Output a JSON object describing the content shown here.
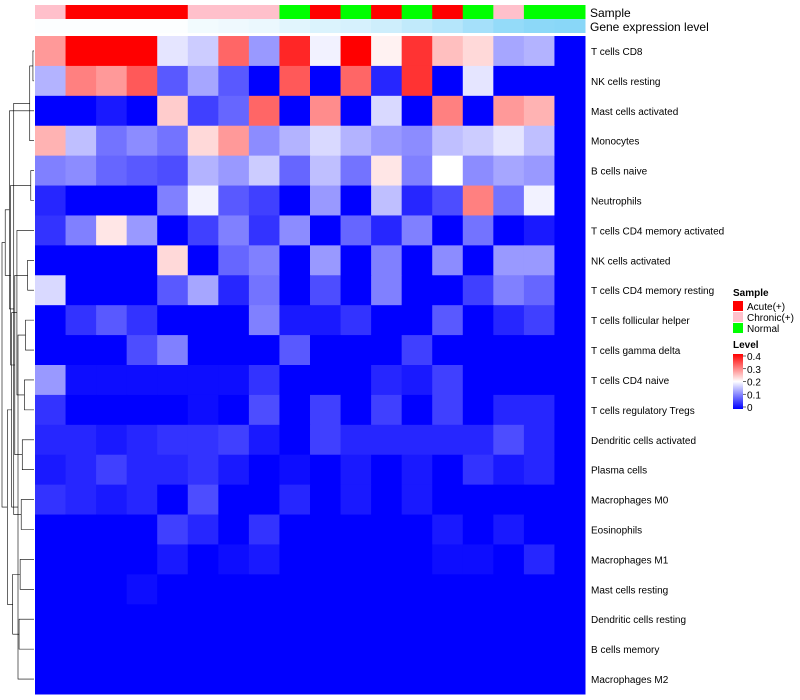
{
  "chart_data": {
    "type": "heatmap",
    "title": "",
    "annotation_labels": [
      "Sample",
      "Gene expression level"
    ],
    "sample_groups": [
      "Chronic(+)",
      "Acute(+)",
      "Acute(+)",
      "Acute(+)",
      "Acute(+)",
      "Chronic(+)",
      "Chronic(+)",
      "Chronic(+)",
      "Normal",
      "Acute(+)",
      "Normal",
      "Acute(+)",
      "Normal",
      "Acute(+)",
      "Normal",
      "Chronic(+)",
      "Normal",
      "Normal"
    ],
    "gene_expression_level": [
      0.02,
      0.02,
      0.02,
      0.02,
      0.02,
      0.08,
      0.1,
      0.12,
      0.18,
      0.22,
      0.25,
      0.3,
      0.38,
      0.45,
      0.55,
      0.65,
      0.7,
      0.72
    ],
    "rows": [
      "T cells CD8",
      "NK cells resting",
      "Mast cells activated",
      "Monocytes",
      "B cells naive",
      "Neutrophils",
      "T cells CD4 memory activated",
      "NK cells activated",
      "T cells CD4 memory resting",
      "T cells follicular helper",
      "T cells gamma delta",
      "T cells CD4 naive",
      "T cells regulatory  Tregs",
      "Dendritic cells activated",
      "Plasma cells",
      "Macrophages M0",
      "Eosinophils",
      "Macrophages M1",
      "Mast cells resting",
      "Dendritic cells resting",
      "B cells memory",
      "Macrophages M2"
    ],
    "values": [
      [
        0.28,
        0.4,
        0.4,
        0.4,
        0.18,
        0.16,
        0.32,
        0.12,
        0.37,
        0.19,
        0.4,
        0.21,
        0.36,
        0.25,
        0.23,
        0.13,
        0.14,
        0.0
      ],
      [
        0.14,
        0.3,
        0.28,
        0.33,
        0.07,
        0.13,
        0.07,
        0.0,
        0.33,
        0.0,
        0.32,
        0.03,
        0.36,
        0.0,
        0.18,
        0.0,
        0.0,
        0.0
      ],
      [
        0.0,
        0.0,
        0.02,
        0.0,
        0.24,
        0.05,
        0.08,
        0.32,
        0.0,
        0.29,
        0.0,
        0.17,
        0.0,
        0.3,
        0.0,
        0.28,
        0.26,
        0.0
      ],
      [
        0.26,
        0.15,
        0.09,
        0.11,
        0.09,
        0.23,
        0.28,
        0.11,
        0.14,
        0.17,
        0.14,
        0.12,
        0.11,
        0.15,
        0.16,
        0.18,
        0.15,
        0.0
      ],
      [
        0.1,
        0.11,
        0.08,
        0.07,
        0.06,
        0.14,
        0.12,
        0.16,
        0.08,
        0.15,
        0.09,
        0.22,
        0.1,
        0.2,
        0.11,
        0.13,
        0.12,
        0.0
      ],
      [
        0.03,
        0.0,
        0.0,
        0.0,
        0.1,
        0.19,
        0.07,
        0.05,
        0.0,
        0.12,
        0.0,
        0.15,
        0.03,
        0.06,
        0.3,
        0.09,
        0.19,
        0.0
      ],
      [
        0.04,
        0.1,
        0.22,
        0.12,
        0.0,
        0.05,
        0.1,
        0.04,
        0.11,
        0.0,
        0.08,
        0.03,
        0.1,
        0.0,
        0.09,
        0.0,
        0.02,
        0.0
      ],
      [
        0.0,
        0.0,
        0.0,
        0.0,
        0.23,
        0.0,
        0.08,
        0.1,
        0.0,
        0.12,
        0.0,
        0.1,
        0.0,
        0.11,
        0.0,
        0.12,
        0.12,
        0.0
      ],
      [
        0.17,
        0.0,
        0.0,
        0.0,
        0.07,
        0.13,
        0.03,
        0.09,
        0.0,
        0.06,
        0.0,
        0.1,
        0.0,
        0.0,
        0.05,
        0.1,
        0.08,
        0.0
      ],
      [
        0.0,
        0.04,
        0.07,
        0.04,
        0.0,
        0.0,
        0.0,
        0.1,
        0.02,
        0.02,
        0.04,
        0.0,
        0.0,
        0.07,
        0.0,
        0.03,
        0.05,
        0.0
      ],
      [
        0.0,
        0.0,
        0.0,
        0.06,
        0.1,
        0.0,
        0.0,
        0.0,
        0.07,
        0.0,
        0.0,
        0.0,
        0.05,
        0.0,
        0.0,
        0.0,
        0.0,
        0.0
      ],
      [
        0.12,
        0.01,
        0.01,
        0.01,
        0.01,
        0.01,
        0.01,
        0.04,
        0.0,
        0.0,
        0.0,
        0.03,
        0.02,
        0.05,
        0.0,
        0.0,
        0.0,
        0.0
      ],
      [
        0.04,
        0.0,
        0.0,
        0.0,
        0.0,
        0.01,
        0.0,
        0.06,
        0.0,
        0.05,
        0.0,
        0.05,
        0.0,
        0.05,
        0.0,
        0.03,
        0.03,
        0.0
      ],
      [
        0.03,
        0.03,
        0.02,
        0.03,
        0.04,
        0.04,
        0.05,
        0.02,
        0.0,
        0.05,
        0.03,
        0.03,
        0.03,
        0.03,
        0.03,
        0.06,
        0.03,
        0.0
      ],
      [
        0.02,
        0.03,
        0.05,
        0.03,
        0.03,
        0.04,
        0.02,
        0.0,
        0.01,
        0.0,
        0.02,
        0.0,
        0.02,
        0.0,
        0.04,
        0.02,
        0.03,
        0.0
      ],
      [
        0.04,
        0.03,
        0.02,
        0.03,
        0.0,
        0.06,
        0.0,
        0.0,
        0.03,
        0.0,
        0.02,
        0.0,
        0.02,
        0.0,
        0.0,
        0.0,
        0.0,
        0.0
      ],
      [
        0.0,
        0.0,
        0.0,
        0.0,
        0.05,
        0.03,
        0.0,
        0.04,
        0.0,
        0.0,
        0.0,
        0.0,
        0.0,
        0.02,
        0.0,
        0.02,
        0.0,
        0.0
      ],
      [
        0.0,
        0.0,
        0.0,
        0.0,
        0.02,
        0.0,
        0.01,
        0.02,
        0.0,
        0.0,
        0.0,
        0.0,
        0.0,
        0.01,
        0.01,
        0.0,
        0.03,
        0.0
      ],
      [
        0.0,
        0.0,
        0.0,
        0.01,
        0.0,
        0.0,
        0.0,
        0.0,
        0.0,
        0.0,
        0.0,
        0.0,
        0.0,
        0.0,
        0.0,
        0.0,
        0.0,
        0.0
      ],
      [
        0.0,
        0.0,
        0.0,
        0.0,
        0.0,
        0.0,
        0.0,
        0.0,
        0.0,
        0.0,
        0.0,
        0.0,
        0.0,
        0.0,
        0.0,
        0.0,
        0.0,
        0.0
      ],
      [
        0.0,
        0.0,
        0.0,
        0.0,
        0.0,
        0.0,
        0.0,
        0.0,
        0.0,
        0.0,
        0.0,
        0.0,
        0.0,
        0.0,
        0.0,
        0.0,
        0.0,
        0.0
      ],
      [
        0.0,
        0.0,
        0.0,
        0.0,
        0.0,
        0.0,
        0.0,
        0.0,
        0.0,
        0.0,
        0.0,
        0.0,
        0.0,
        0.0,
        0.0,
        0.0,
        0.0,
        0.0
      ]
    ],
    "dendrogram": [
      [
        0,
        1,
        1
      ],
      [
        4,
        5,
        3
      ],
      [
        3,
        22,
        4
      ],
      [
        7,
        8,
        6
      ],
      [
        9,
        10,
        8
      ],
      [
        11,
        12,
        9
      ],
      [
        13,
        14,
        11
      ],
      [
        15,
        16,
        12
      ],
      [
        17,
        18,
        13
      ],
      [
        19,
        20,
        14
      ],
      [
        21,
        26,
        15
      ],
      [
        6,
        27,
        16
      ],
      [
        28,
        25,
        18
      ],
      [
        24,
        29,
        19
      ],
      [
        30,
        31,
        20
      ],
      [
        32,
        33,
        21
      ],
      [
        23,
        34,
        22
      ],
      [
        2,
        35,
        23
      ],
      [
        36,
        37,
        25
      ],
      [
        38,
        39,
        27
      ],
      [
        40,
        41,
        30
      ]
    ],
    "legend": {
      "sample_title": "Sample",
      "sample_entries": [
        {
          "label": "Acute(+)",
          "color": "#ff0000"
        },
        {
          "label": "Chronic(+)",
          "color": "#ffc0cb"
        },
        {
          "label": "Normal",
          "color": "#00ff00"
        }
      ],
      "level_title": "Level",
      "level_ticks": [
        "0.4",
        "0.3",
        "0.2",
        "0.1",
        "0"
      ],
      "level_range": [
        0,
        0.4
      ]
    },
    "colors": {
      "low": "#0000ff",
      "mid": "#ffffff",
      "high": "#ff0000",
      "expr_low": "#ffffff",
      "expr_high": "#5bc7f5"
    }
  }
}
